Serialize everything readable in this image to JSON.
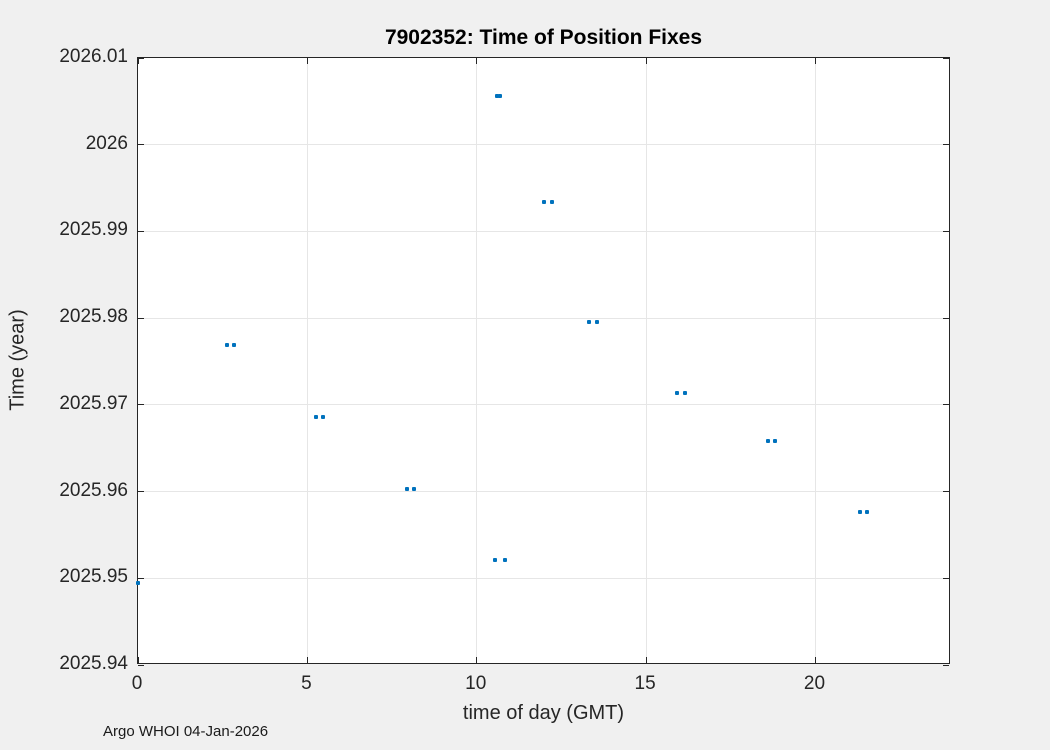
{
  "figure": {
    "title": "7902352: Time of Position Fixes",
    "xlabel": "time of day (GMT)",
    "ylabel": "Time (year)",
    "footer": "Argo WHOI 04-Jan-2026"
  },
  "colors": {
    "figure_background": "#f0f0f0",
    "plot_background": "#ffffff",
    "axis": "#262626",
    "grid": "#e6e6e6",
    "marker": "#0072bd",
    "title": "#000000"
  },
  "chart_data": {
    "type": "scatter",
    "title": "7902352: Time of Position Fixes",
    "xlabel": "time of day (GMT)",
    "ylabel": "Time (year)",
    "xlim": [
      0,
      24
    ],
    "ylim": [
      2025.94,
      2026.01
    ],
    "x_ticks": [
      0,
      5,
      10,
      15,
      20
    ],
    "x_tick_labels": [
      "0",
      "5",
      "10",
      "15",
      "20"
    ],
    "y_ticks": [
      2025.94,
      2025.95,
      2025.96,
      2025.97,
      2025.98,
      2025.99,
      2026,
      2026.01
    ],
    "y_tick_labels": [
      "2025.94",
      "2025.95",
      "2025.96",
      "2025.97",
      "2025.98",
      "2025.99",
      "2026",
      "2026.01"
    ],
    "grid": true,
    "box": true,
    "legend": "none",
    "marker_color": "#0072bd",
    "points": [
      [
        0.0,
        2025.9494
      ],
      [
        2.63,
        2025.9769
      ],
      [
        2.83,
        2025.9769
      ],
      [
        5.25,
        2025.9686
      ],
      [
        5.46,
        2025.9686
      ],
      [
        7.94,
        2025.9603
      ],
      [
        8.15,
        2025.9603
      ],
      [
        10.6,
        2026.0056
      ],
      [
        10.7,
        2026.0056
      ],
      [
        10.54,
        2025.9521
      ],
      [
        10.83,
        2025.9521
      ],
      [
        11.99,
        2025.9934
      ],
      [
        12.22,
        2025.9934
      ],
      [
        13.31,
        2025.9796
      ],
      [
        13.55,
        2025.9796
      ],
      [
        15.91,
        2025.9714
      ],
      [
        16.15,
        2025.9714
      ],
      [
        18.6,
        2025.9658
      ],
      [
        18.8,
        2025.9658
      ],
      [
        21.31,
        2025.9577
      ],
      [
        21.52,
        2025.9577
      ]
    ]
  }
}
